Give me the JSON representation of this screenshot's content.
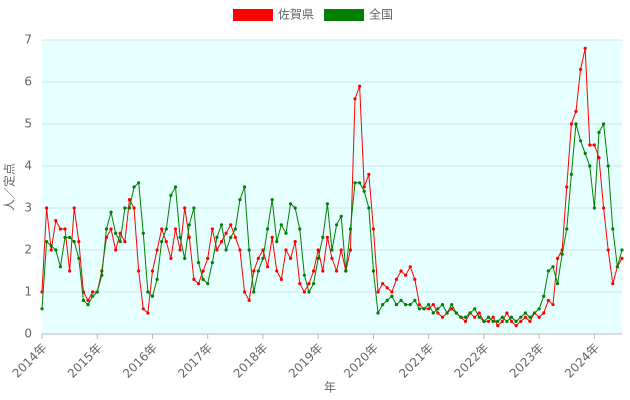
{
  "chart_data": {
    "type": "line",
    "x_label": "年",
    "y_label": "人／定点",
    "categories": [
      "2014年",
      null,
      null,
      null,
      null,
      null,
      null,
      null,
      null,
      null,
      null,
      null,
      "2015年",
      null,
      null,
      null,
      null,
      null,
      null,
      null,
      null,
      null,
      null,
      null,
      "2016年",
      null,
      null,
      null,
      null,
      null,
      null,
      null,
      null,
      null,
      null,
      null,
      "2017年",
      null,
      null,
      null,
      null,
      null,
      null,
      null,
      null,
      null,
      null,
      null,
      "2018年",
      null,
      null,
      null,
      null,
      null,
      null,
      null,
      null,
      null,
      null,
      null,
      "2019年",
      null,
      null,
      null,
      null,
      null,
      null,
      null,
      null,
      null,
      null,
      null,
      "2020年",
      null,
      null,
      null,
      null,
      null,
      null,
      null,
      null,
      null,
      null,
      null,
      "2021年",
      null,
      null,
      null,
      null,
      null,
      null,
      null,
      null,
      null,
      null,
      null,
      "2022年",
      null,
      null,
      null,
      null,
      null,
      null,
      null,
      null,
      null,
      null,
      null,
      "2023年",
      null,
      null,
      null,
      null,
      null,
      null,
      null,
      null,
      null,
      null,
      null,
      "2024年",
      null,
      null,
      null,
      null,
      null,
      null
    ],
    "series": [
      {
        "name": "佐賀県",
        "color": "#ff0000",
        "values": [
          1.0,
          3.0,
          2.0,
          2.7,
          2.5,
          2.5,
          1.5,
          3.0,
          2.2,
          1.0,
          0.8,
          1.0,
          1.0,
          1.5,
          2.3,
          2.5,
          2.0,
          2.4,
          2.2,
          3.2,
          3.0,
          1.5,
          0.6,
          0.5,
          1.5,
          2.0,
          2.5,
          2.2,
          1.8,
          2.5,
          2.0,
          3.0,
          2.3,
          1.3,
          1.2,
          1.5,
          1.8,
          2.5,
          2.0,
          2.2,
          2.4,
          2.6,
          2.3,
          2.0,
          1.0,
          0.8,
          1.5,
          1.8,
          2.0,
          1.6,
          2.3,
          1.5,
          1.3,
          2.0,
          1.8,
          2.2,
          1.2,
          1.0,
          1.2,
          1.5,
          2.0,
          1.5,
          2.3,
          1.8,
          1.5,
          2.0,
          1.5,
          2.0,
          5.6,
          5.9,
          3.5,
          3.8,
          2.5,
          1.0,
          1.2,
          1.1,
          1.0,
          1.3,
          1.5,
          1.4,
          1.6,
          1.3,
          0.7,
          0.6,
          0.6,
          0.7,
          0.5,
          0.4,
          0.5,
          0.6,
          0.5,
          0.4,
          0.3,
          0.5,
          0.4,
          0.5,
          0.3,
          0.3,
          0.4,
          0.2,
          0.3,
          0.5,
          0.3,
          0.2,
          0.3,
          0.4,
          0.3,
          0.5,
          0.4,
          0.5,
          0.8,
          0.7,
          1.8,
          2.0,
          3.5,
          5.0,
          5.3,
          6.3,
          6.8,
          4.5,
          4.5,
          4.2,
          3.0,
          2.0,
          1.2,
          1.6,
          1.8
        ]
      },
      {
        "name": "全国",
        "color": "#008000",
        "values": [
          0.6,
          2.2,
          2.1,
          2.0,
          1.6,
          2.3,
          2.3,
          2.2,
          1.8,
          0.8,
          0.7,
          0.9,
          1.0,
          1.4,
          2.5,
          2.9,
          2.4,
          2.2,
          3.0,
          3.0,
          3.5,
          3.6,
          2.4,
          1.0,
          0.9,
          1.3,
          2.2,
          2.5,
          3.3,
          3.5,
          2.3,
          1.8,
          2.6,
          3.0,
          1.7,
          1.3,
          1.2,
          1.7,
          2.3,
          2.6,
          2.0,
          2.3,
          2.5,
          3.2,
          3.5,
          2.0,
          1.0,
          1.5,
          1.8,
          2.5,
          3.2,
          2.2,
          2.6,
          2.4,
          3.1,
          3.0,
          2.5,
          1.4,
          1.0,
          1.2,
          1.8,
          2.3,
          3.1,
          2.0,
          2.6,
          2.8,
          1.5,
          2.5,
          3.6,
          3.6,
          3.4,
          3.0,
          1.5,
          0.5,
          0.7,
          0.8,
          0.9,
          0.7,
          0.8,
          0.7,
          0.7,
          0.8,
          0.6,
          0.6,
          0.7,
          0.5,
          0.6,
          0.7,
          0.5,
          0.7,
          0.5,
          0.4,
          0.4,
          0.5,
          0.6,
          0.4,
          0.3,
          0.4,
          0.3,
          0.3,
          0.4,
          0.3,
          0.4,
          0.3,
          0.4,
          0.5,
          0.4,
          0.5,
          0.6,
          0.9,
          1.5,
          1.6,
          1.2,
          1.9,
          2.5,
          3.8,
          5.0,
          4.6,
          4.3,
          4.0,
          3.0,
          4.8,
          5.0,
          4.0,
          2.5,
          1.6,
          2.0
        ]
      }
    ],
    "ylim": [
      0,
      7
    ],
    "yticks": [
      0,
      1,
      2,
      3,
      4,
      5,
      6,
      7
    ],
    "grid": true,
    "legend": "top"
  }
}
